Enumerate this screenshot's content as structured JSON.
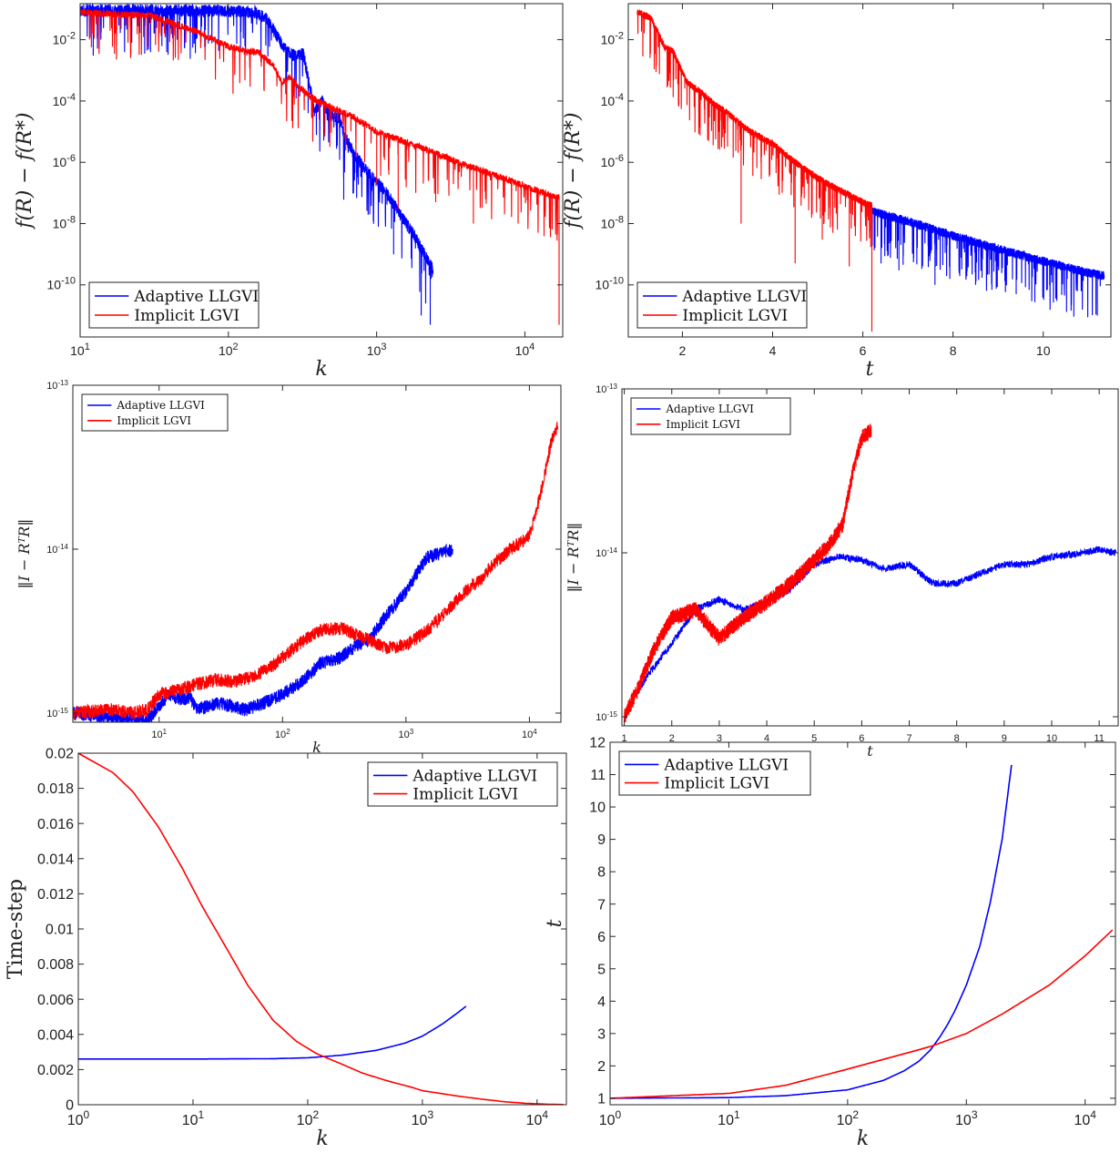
{
  "colors": {
    "adaptive": "#0000ff",
    "implicit": "#ff0000",
    "axis": "#262626"
  },
  "chart_data": [
    {
      "id": "p1",
      "type": "line",
      "xscale": "log",
      "yscale": "log",
      "xlim": [
        10,
        18000
      ],
      "ylim": [
        2e-12,
        0.15
      ],
      "xlabel": "k",
      "ylabel": "f(R) − f(R*)",
      "xticks": [
        10,
        100,
        1000,
        10000
      ],
      "xticklabels": [
        "10^1",
        "10^2",
        "10^3",
        "10^4"
      ],
      "yticks": [
        1e-10,
        1e-08,
        1e-06,
        0.0001,
        0.01
      ],
      "yticklabels": [
        "10^-10",
        "10^-8",
        "10^-6",
        "10^-4",
        "10^-2"
      ],
      "legend": {
        "position": "bottom-left",
        "entries": [
          "Adaptive LLGVI",
          "Implicit LGVI"
        ]
      },
      "series": [
        {
          "name": "Adaptive LLGVI",
          "color": "#0000ff",
          "x": [
            10,
            40,
            100,
            150,
            180,
            220,
            250,
            280,
            320,
            350,
            380,
            430,
            500,
            560,
            600,
            700,
            800,
            900,
            1000,
            1200,
            1500,
            1800,
            2000,
            2300,
            2400
          ],
          "y": [
            0.09,
            0.09,
            0.088,
            0.08,
            0.05,
            0.01,
            0.004,
            0.003,
            0.0035,
            0.0004,
            5e-05,
            0.0001,
            3e-05,
            3e-05,
            8e-06,
            2e-06,
            8e-07,
            4e-07,
            2.5e-07,
            8e-08,
            1.5e-08,
            4e-09,
            1.5e-09,
            5e-10,
            3e-10
          ],
          "osc": 1.6,
          "dips": [
            [
              600,
              6e-08
            ],
            [
              700,
              1e-07
            ],
            [
              900,
              2e-08
            ],
            [
              1300,
              1e-09
            ],
            [
              2000,
              1e-11
            ],
            [
              2300,
              5e-12
            ]
          ]
        },
        {
          "name": "Implicit LGVI",
          "color": "#ff0000",
          "x": [
            10,
            30,
            60,
            100,
            130,
            160,
            200,
            230,
            260,
            300,
            350,
            400,
            500,
            700,
            1000,
            2000,
            4000,
            8000,
            12000,
            17000
          ],
          "y": [
            0.08,
            0.06,
            0.02,
            0.006,
            0.004,
            0.004,
            0.0015,
            0.0004,
            0.0006,
            0.0003,
            0.00015,
            0.0001,
            6e-05,
            3e-05,
            1e-05,
            3e-06,
            8e-07,
            2.5e-07,
            1.2e-07,
            7e-08
          ],
          "osc": 1.3,
          "dips": [
            [
              1000,
              2e-07
            ],
            [
              1400,
              3e-08
            ],
            [
              2500,
              5e-08
            ],
            [
              4500,
              1e-08
            ],
            [
              9000,
              1e-08
            ],
            [
              17000,
              5e-12
            ]
          ]
        }
      ]
    },
    {
      "id": "p2",
      "type": "line",
      "xscale": "linear",
      "yscale": "log",
      "xlim": [
        0.8,
        11.5
      ],
      "ylim": [
        2e-12,
        0.15
      ],
      "xlabel": "t",
      "ylabel": "f(R) − f(R*)",
      "xticks": [
        2,
        4,
        6,
        8,
        10
      ],
      "xticklabels": [
        "2",
        "4",
        "6",
        "8",
        "10"
      ],
      "yticks": [
        1e-10,
        1e-08,
        1e-06,
        0.0001,
        0.01
      ],
      "yticklabels": [
        "10^-10",
        "10^-8",
        "10^-6",
        "10^-4",
        "10^-2"
      ],
      "legend": {
        "position": "bottom-left",
        "entries": [
          "Adaptive LLGVI",
          "Implicit LGVI"
        ]
      },
      "series": [
        {
          "name": "Adaptive LLGVI",
          "color": "#0000ff",
          "x": [
            6.2,
            7,
            8,
            9,
            10,
            11,
            11.35
          ],
          "y": [
            2.5e-08,
            1.2e-08,
            4e-09,
            1.5e-09,
            6e-10,
            2.5e-10,
            2e-10
          ],
          "osc": 1.4,
          "dips": [
            [
              6.8,
              3e-10
            ],
            [
              7.6,
              1e-10
            ],
            [
              8.5,
              1e-10
            ],
            [
              9.4,
              5e-11
            ],
            [
              10.3,
              3e-11
            ],
            [
              11.2,
              1e-11
            ]
          ]
        },
        {
          "name": "Implicit LGVI",
          "color": "#ff0000",
          "x": [
            1,
            1.3,
            1.6,
            1.8,
            2.1,
            2.4,
            2.7,
            3,
            3.5,
            4,
            4.5,
            5,
            5.5,
            6,
            6.2
          ],
          "y": [
            0.08,
            0.05,
            0.006,
            0.004,
            0.0004,
            0.0002,
            8e-05,
            4e-05,
            1e-05,
            4e-06,
            1e-06,
            3e-07,
            1.2e-07,
            5e-08,
            4e-08
          ],
          "osc": 1.3,
          "dips": [
            [
              3.3,
              1e-08
            ],
            [
              4.5,
              5e-10
            ],
            [
              5.1,
              3e-09
            ],
            [
              5.7,
              4e-10
            ],
            [
              6.2,
              3e-12
            ]
          ]
        }
      ]
    },
    {
      "id": "p3",
      "type": "line",
      "xscale": "log",
      "yscale": "log",
      "xlim": [
        2,
        18000
      ],
      "ylim": [
        8.8e-16,
        1e-13
      ],
      "xlabel": "k",
      "ylabel": "‖I − RᵀR‖",
      "xticks": [
        10,
        100,
        1000,
        10000
      ],
      "xticklabels": [
        "10^1",
        "10^2",
        "10^3",
        "10^4"
      ],
      "yticks": [
        1e-15,
        1e-14,
        1e-13
      ],
      "yticklabels": [
        "10^-15",
        "10^-14",
        "10^-13"
      ],
      "legend": {
        "position": "top-left",
        "entries": [
          "Adaptive LLGVI",
          "Implicit LGVI"
        ]
      },
      "series": [
        {
          "name": "Adaptive LLGVI",
          "color": "#0000ff",
          "x": [
            2,
            4,
            6,
            8,
            10,
            12,
            15,
            18,
            20,
            25,
            30,
            40,
            50,
            60,
            80,
            100,
            150,
            200,
            300,
            400,
            500,
            700,
            1000,
            1200,
            1500,
            2000,
            2400
          ],
          "y": [
            1e-15,
            9.5e-16,
            9.2e-16,
            9e-16,
            1.1e-15,
            1.3e-15,
            1.2e-15,
            1.25e-15,
            1.05e-15,
            1.1e-15,
            1.15e-15,
            1.1e-15,
            1.05e-15,
            1.1e-15,
            1.2e-15,
            1.3e-15,
            1.6e-15,
            2e-15,
            2.2e-15,
            2.6e-15,
            2.8e-15,
            4e-15,
            5.5e-15,
            7e-15,
            9e-15,
            9.5e-15,
            1e-14
          ],
          "osc": 1.1
        },
        {
          "name": "Implicit LGVI",
          "color": "#ff0000",
          "x": [
            2,
            4,
            6,
            8,
            10,
            15,
            20,
            30,
            40,
            60,
            80,
            100,
            150,
            200,
            300,
            400,
            500,
            700,
            1000,
            1500,
            2000,
            3000,
            4000,
            5000,
            7000,
            10000,
            12000,
            15000,
            17000
          ],
          "y": [
            1e-15,
            1.05e-15,
            1e-15,
            1.05e-15,
            1.3e-15,
            1.4e-15,
            1.5e-15,
            1.6e-15,
            1.55e-15,
            1.7e-15,
            1.9e-15,
            2.2e-15,
            2.8e-15,
            3.2e-15,
            3.3e-15,
            3e-15,
            2.8e-15,
            2.5e-15,
            2.6e-15,
            3.2e-15,
            4e-15,
            5.5e-15,
            6.5e-15,
            8e-15,
            1e-14,
            1.2e-14,
            2e-14,
            4.5e-14,
            5.6e-14
          ],
          "osc": 1.1
        }
      ]
    },
    {
      "id": "p4",
      "type": "line",
      "xscale": "linear",
      "yscale": "log",
      "xlim": [
        0.95,
        11.4
      ],
      "ylim": [
        8.8e-16,
        1e-13
      ],
      "xlabel": "t",
      "ylabel": "‖I − RᵀR‖",
      "xticks": [
        1,
        2,
        3,
        4,
        5,
        6,
        7,
        8,
        9,
        10,
        11
      ],
      "xticklabels": [
        "1",
        "2",
        "3",
        "4",
        "5",
        "6",
        "7",
        "8",
        "9",
        "10",
        "11"
      ],
      "yticks": [
        1e-15,
        1e-14,
        1e-13
      ],
      "yticklabels": [
        "10^-15",
        "10^-14",
        "10^-13"
      ],
      "legend": {
        "position": "top-left",
        "entries": [
          "Adaptive LLGVI",
          "Implicit LGVI"
        ]
      },
      "series": [
        {
          "name": "Adaptive LLGVI",
          "color": "#0000ff",
          "x": [
            1,
            1.2,
            1.5,
            2,
            2.5,
            3,
            3.5,
            4,
            4.5,
            5,
            5.5,
            6,
            6.5,
            7,
            7.5,
            8,
            8.5,
            9,
            9.5,
            10,
            10.5,
            11,
            11.35
          ],
          "y": [
            9.5e-16,
            1.3e-15,
            1.8e-15,
            2.8e-15,
            4.5e-15,
            5.2e-15,
            4.5e-15,
            5e-15,
            6e-15,
            8.5e-15,
            9.5e-15,
            9e-15,
            8e-15,
            8.5e-15,
            6.5e-15,
            6.5e-15,
            7.5e-15,
            8.5e-15,
            8.5e-15,
            9.5e-15,
            9.8e-15,
            1.05e-14,
            1e-14
          ],
          "osc": 1.05
        },
        {
          "name": "Implicit LGVI",
          "color": "#ff0000",
          "x": [
            1,
            1.3,
            1.6,
            2,
            2.5,
            3,
            3.5,
            4,
            4.5,
            5,
            5.3,
            5.6,
            5.8,
            6,
            6.2
          ],
          "y": [
            1e-15,
            1.5e-15,
            2.5e-15,
            4e-15,
            4.5e-15,
            3e-15,
            4e-15,
            5e-15,
            6.5e-15,
            9e-15,
            1.1e-14,
            1.5e-14,
            3e-14,
            5e-14,
            5.6e-14
          ],
          "osc": 1.12
        }
      ]
    },
    {
      "id": "p5",
      "type": "line",
      "xscale": "log",
      "yscale": "linear",
      "xlim": [
        1,
        18000
      ],
      "ylim": [
        0,
        0.02
      ],
      "xlabel": "k",
      "ylabel": "Time-step",
      "xticks": [
        1,
        10,
        100,
        1000,
        10000
      ],
      "xticklabels": [
        "10^0",
        "10^1",
        "10^2",
        "10^3",
        "10^4"
      ],
      "yticks": [
        0,
        0.002,
        0.004,
        0.006,
        0.008,
        0.01,
        0.012,
        0.014,
        0.016,
        0.018,
        0.02
      ],
      "yticklabels": [
        "0",
        "0.002",
        "0.004",
        "0.006",
        "0.008",
        "0.01",
        "0.012",
        "0.014",
        "0.016",
        "0.018",
        "0.02"
      ],
      "legend": {
        "position": "top-right",
        "entries": [
          "Adaptive LLGVI",
          "Implicit LGVI"
        ]
      },
      "series": [
        {
          "name": "Adaptive LLGVI",
          "color": "#0000ff",
          "x": [
            1,
            10,
            50,
            100,
            200,
            400,
            700,
            1000,
            1500,
            2000,
            2400
          ],
          "y": [
            0.0026,
            0.0026,
            0.00262,
            0.00267,
            0.00282,
            0.0031,
            0.0035,
            0.0039,
            0.0046,
            0.0052,
            0.0056
          ],
          "osc": 0
        },
        {
          "name": "Implicit LGVI",
          "color": "#ff0000",
          "x": [
            1,
            2,
            3,
            5,
            8,
            12,
            20,
            30,
            50,
            80,
            120,
            200,
            300,
            500,
            800,
            1000,
            2000,
            3000,
            5000,
            8000,
            12000,
            17000
          ],
          "y": [
            0.02,
            0.0189,
            0.0178,
            0.0158,
            0.0135,
            0.0113,
            0.0088,
            0.0068,
            0.0048,
            0.0036,
            0.0029,
            0.0023,
            0.0018,
            0.00135,
            0.001,
            0.0008,
            0.0005,
            0.00035,
            0.00018,
            8e-05,
            3e-05,
            1e-05
          ],
          "osc": 0
        }
      ]
    },
    {
      "id": "p6",
      "type": "line",
      "xscale": "log",
      "yscale": "linear",
      "xlim": [
        1,
        18000
      ],
      "ylim": [
        0.8,
        12
      ],
      "xlabel": "k",
      "ylabel": "t",
      "xticks": [
        1,
        10,
        100,
        1000,
        10000
      ],
      "xticklabels": [
        "10^0",
        "10^1",
        "10^2",
        "10^3",
        "10^4"
      ],
      "yticks": [
        1,
        2,
        3,
        4,
        5,
        6,
        7,
        8,
        9,
        10,
        11,
        12
      ],
      "yticklabels": [
        "1",
        "2",
        "3",
        "4",
        "5",
        "6",
        "7",
        "8",
        "9",
        "10",
        "11",
        "12"
      ],
      "legend": {
        "position": "top-left",
        "entries": [
          "Adaptive LLGVI",
          "Implicit LGVI"
        ]
      },
      "series": [
        {
          "name": "Adaptive LLGVI",
          "color": "#0000ff",
          "x": [
            1,
            10,
            30,
            100,
            200,
            300,
            400,
            500,
            600,
            700,
            800,
            1000,
            1300,
            1600,
            2000,
            2400
          ],
          "y": [
            1.0,
            1.02,
            1.08,
            1.26,
            1.55,
            1.85,
            2.15,
            2.5,
            2.9,
            3.3,
            3.7,
            4.5,
            5.7,
            7.1,
            9.0,
            11.3
          ],
          "osc": 0
        },
        {
          "name": "Implicit LGVI",
          "color": "#ff0000",
          "x": [
            1,
            10,
            30,
            100,
            200,
            500,
            1000,
            2000,
            5000,
            10000,
            17000
          ],
          "y": [
            1.0,
            1.15,
            1.4,
            1.9,
            2.2,
            2.6,
            3.0,
            3.6,
            4.5,
            5.4,
            6.2
          ],
          "osc": 0
        }
      ]
    }
  ]
}
